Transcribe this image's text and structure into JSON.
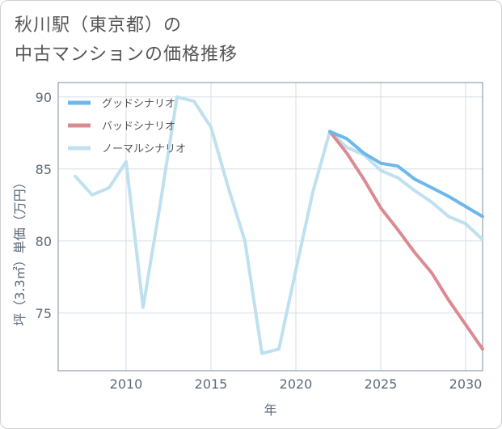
{
  "title": {
    "line1": "秋川駅（東京都）の",
    "line2": "中古マンションの価格推移"
  },
  "chart_data": {
    "type": "line",
    "xlabel": "年",
    "ylabel": "坪（3.3㎡）単価（万円）",
    "xlim": [
      2006,
      2031
    ],
    "ylim": [
      71,
      91
    ],
    "x_ticks": [
      2010,
      2015,
      2020,
      2025,
      2030
    ],
    "y_ticks": [
      75,
      80,
      85,
      90
    ],
    "grid": true,
    "legend_position": "top-left",
    "series": [
      {
        "name": "グッドシナリオ",
        "color": "#6cb8ea",
        "x": [
          2022,
          2023,
          2024,
          2025,
          2026,
          2027,
          2028,
          2029,
          2030,
          2031
        ],
        "y": [
          87.6,
          87.1,
          86.1,
          85.4,
          85.2,
          84.3,
          83.7,
          83.1,
          82.4,
          81.7
        ]
      },
      {
        "name": "バッドシナリオ",
        "color": "#dc8a92",
        "x": [
          2022,
          2023,
          2024,
          2025,
          2026,
          2027,
          2028,
          2029,
          2030,
          2031
        ],
        "y": [
          87.6,
          86.1,
          84.3,
          82.3,
          80.8,
          79.2,
          77.8,
          75.9,
          74.2,
          72.5
        ]
      },
      {
        "name": "ノーマルシナリオ",
        "color": "#bfe0ef",
        "x": [
          2007,
          2008,
          2009,
          2010,
          2011,
          2012,
          2013,
          2014,
          2015,
          2016,
          2017,
          2018,
          2019,
          2020,
          2021,
          2022,
          2023,
          2024,
          2025,
          2026,
          2027,
          2028,
          2029,
          2030,
          2031
        ],
        "y": [
          84.5,
          83.2,
          83.7,
          85.5,
          75.4,
          82.5,
          90.0,
          89.7,
          87.9,
          83.8,
          80.0,
          72.2,
          72.5,
          78.0,
          83.4,
          87.6,
          86.5,
          86.0,
          84.9,
          84.4,
          83.5,
          82.7,
          81.7,
          81.2,
          80.1
        ]
      }
    ]
  }
}
